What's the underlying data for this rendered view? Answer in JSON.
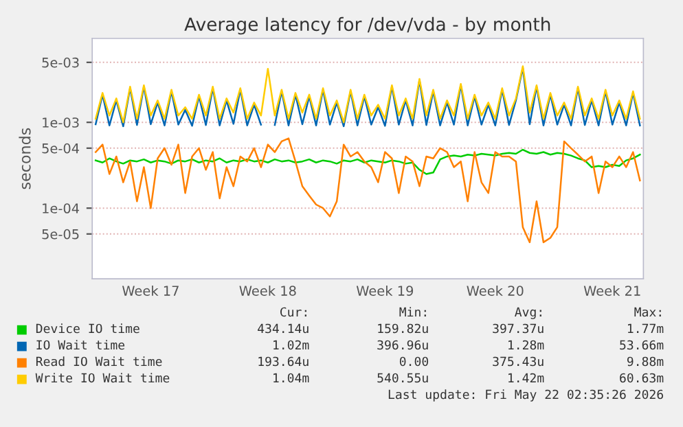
{
  "chart_data": {
    "type": "line",
    "title": "Average latency for /dev/vda - by month",
    "ylabel": "seconds",
    "log": "y",
    "categories": [
      null,
      null,
      null,
      null,
      null,
      null,
      null,
      null,
      "Week 17",
      null,
      null,
      null,
      null,
      null,
      null,
      null,
      null,
      null,
      null,
      null,
      null,
      null,
      null,
      null,
      null,
      "Week 18",
      null,
      null,
      null,
      null,
      null,
      null,
      null,
      null,
      null,
      null,
      null,
      null,
      null,
      null,
      null,
      null,
      "Week 19",
      null,
      null,
      null,
      null,
      null,
      null,
      null,
      null,
      null,
      null,
      null,
      null,
      null,
      null,
      null,
      "Week 20",
      null,
      null,
      null,
      null,
      null,
      null,
      null,
      null,
      null,
      null,
      null,
      null,
      null,
      null,
      null,
      null,
      "Week 21",
      null,
      null,
      null,
      null
    ],
    "series": [
      {
        "name": "Device IO time",
        "color": "#00cc00",
        "values": [
          0.00036,
          0.00034,
          0.00038,
          0.00035,
          0.00033,
          0.00036,
          0.00035,
          0.00037,
          0.00034,
          0.00036,
          0.00035,
          0.00033,
          0.00036,
          0.00035,
          0.00037,
          0.00034,
          0.00036,
          0.00035,
          0.00038,
          0.00034,
          0.00036,
          0.00035,
          0.00037,
          0.00035,
          0.00036,
          0.00034,
          0.00037,
          0.00035,
          0.00036,
          0.00034,
          0.00035,
          0.00037,
          0.00034,
          0.00036,
          0.00035,
          0.00033,
          0.00036,
          0.00035,
          0.00037,
          0.00034,
          0.00036,
          0.00035,
          0.00034,
          0.00036,
          0.00035,
          0.00033,
          0.00034,
          0.00028,
          0.00025,
          0.00026,
          0.00037,
          0.0004,
          0.00041,
          0.0004,
          0.00042,
          0.00041,
          0.00043,
          0.00042,
          0.00041,
          0.00043,
          0.00044,
          0.00043,
          0.00048,
          0.00044,
          0.00043,
          0.00045,
          0.00042,
          0.00044,
          0.00043,
          0.00041,
          0.00038,
          0.00036,
          0.0003,
          0.00031,
          0.0003,
          0.00032,
          0.00031,
          0.00036,
          0.00038,
          0.00042
        ]
      },
      {
        "name": "IO Wait time",
        "color": "#0066b3",
        "values": [
          0.00095,
          0.0021,
          0.00092,
          0.0018,
          0.0009,
          0.0025,
          0.00093,
          0.0026,
          0.00095,
          0.0017,
          0.00092,
          0.0023,
          0.00094,
          0.0014,
          0.00091,
          0.002,
          0.00093,
          0.0025,
          0.00092,
          0.0018,
          0.00096,
          0.0024,
          0.00092,
          0.0016,
          0.00094,
          null,
          0.00093,
          0.0023,
          0.00092,
          0.0021,
          0.00095,
          0.002,
          0.00092,
          0.0024,
          0.00094,
          0.0017,
          0.0009,
          0.0023,
          0.00092,
          0.002,
          0.00094,
          0.0015,
          0.00091,
          0.0026,
          0.00094,
          0.0018,
          0.00092,
          0.0031,
          0.00093,
          0.0023,
          0.00092,
          0.0017,
          0.00094,
          0.0027,
          0.00092,
          0.002,
          0.00094,
          0.0016,
          0.00092,
          0.0024,
          0.00093,
          0.0018,
          0.0043,
          0.00095,
          0.0026,
          0.00092,
          0.0021,
          0.00094,
          0.0016,
          0.00092,
          0.0025,
          0.00093,
          0.0018,
          0.00092,
          0.0023,
          0.00094,
          0.0017,
          0.00092,
          0.0022,
          0.00092
        ]
      },
      {
        "name": "Read IO Wait time",
        "color": "#ff8000",
        "values": [
          0.00045,
          0.00055,
          0.00025,
          0.0004,
          0.0002,
          0.00035,
          0.00012,
          0.0003,
          0.0001,
          0.00038,
          0.0005,
          0.00032,
          0.00055,
          0.00015,
          0.0004,
          0.0005,
          0.00028,
          0.00045,
          0.00013,
          0.0003,
          0.00018,
          0.0004,
          0.00035,
          0.0005,
          0.0003,
          0.00055,
          0.00045,
          0.0006,
          0.00065,
          0.00035,
          0.00018,
          0.00014,
          0.00011,
          0.0001,
          8e-05,
          0.00012,
          0.00055,
          0.0004,
          0.00045,
          0.00035,
          0.0003,
          0.0002,
          0.00045,
          0.00038,
          0.00015,
          0.0004,
          0.00035,
          0.00018,
          0.0004,
          0.00038,
          0.0005,
          0.00045,
          0.0003,
          0.00035,
          0.00012,
          0.00045,
          0.0002,
          0.00015,
          0.00045,
          0.0004,
          0.0004,
          0.00035,
          6e-05,
          4e-05,
          0.00012,
          4e-05,
          4.5e-05,
          6e-05,
          0.0006,
          0.0005,
          0.00042,
          0.00035,
          0.0004,
          0.00015,
          0.00035,
          0.0003,
          0.0004,
          0.0003,
          0.00045,
          0.00021
        ]
      },
      {
        "name": "Write IO Wait time",
        "color": "#ffcc00",
        "values": [
          0.0011,
          0.0022,
          0.0012,
          0.0019,
          0.001,
          0.0026,
          0.0011,
          0.0027,
          0.0012,
          0.0018,
          0.0011,
          0.0024,
          0.0012,
          0.0015,
          0.0011,
          0.0021,
          0.0012,
          0.0026,
          0.0011,
          0.0019,
          0.0013,
          0.0025,
          0.0011,
          0.0017,
          0.0012,
          0.0042,
          0.0012,
          0.0024,
          0.0011,
          0.0022,
          0.0013,
          0.0021,
          0.0011,
          0.0025,
          0.0012,
          0.0018,
          0.001,
          0.0024,
          0.0011,
          0.0021,
          0.0012,
          0.0016,
          0.0011,
          0.0027,
          0.0012,
          0.0019,
          0.0011,
          0.0032,
          0.0012,
          0.0024,
          0.0011,
          0.0018,
          0.0012,
          0.0028,
          0.0011,
          0.0021,
          0.0012,
          0.0017,
          0.0011,
          0.0025,
          0.0012,
          0.0019,
          0.0045,
          0.0013,
          0.0027,
          0.0011,
          0.0022,
          0.0012,
          0.0017,
          0.0011,
          0.0026,
          0.0012,
          0.0019,
          0.0011,
          0.0024,
          0.0012,
          0.0018,
          0.0011,
          0.0023,
          0.0011
        ]
      }
    ],
    "ylim": [
      1.5e-05,
      0.0095
    ],
    "yticks": [
      {
        "value": 5e-05,
        "label": "5e-05"
      },
      {
        "value": 0.0001,
        "label": "1e-04"
      },
      {
        "value": 0.0005,
        "label": "5e-04"
      },
      {
        "value": 0.001,
        "label": "1e-03"
      },
      {
        "value": 0.005,
        "label": "5e-03"
      }
    ],
    "grid": "y",
    "legend": "bottom",
    "line_style": "solid",
    "annotations": [
      "Cur:",
      "Min:",
      "Avg:",
      "Max:",
      "434.14u",
      "159.82u",
      "397.37u",
      "1.77m",
      "1.02m",
      "396.96u",
      "1.28m",
      "53.66m",
      "193.64u",
      "0.00",
      "375.43u",
      "9.88m",
      "1.04m",
      "540.55u",
      "1.42m",
      "60.63m",
      "Last update: Fri May 22 02:35:26 2026"
    ]
  }
}
